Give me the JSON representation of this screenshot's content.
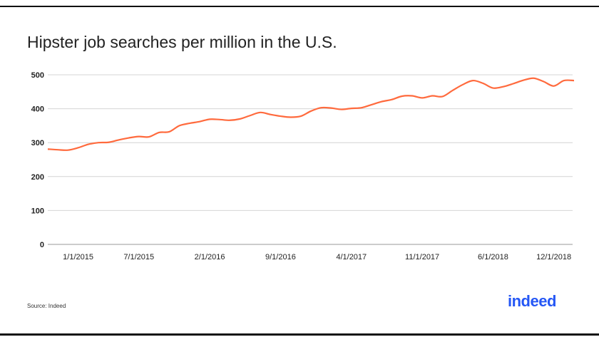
{
  "chart_data": {
    "type": "line",
    "title": "Hipster job searches per million in the U.S.",
    "xlabel": "",
    "ylabel": "",
    "ylim": [
      0,
      500
    ],
    "yticks": [
      0,
      100,
      200,
      300,
      400,
      500
    ],
    "grid": true,
    "start_month": "10/2014",
    "xtick_labels": [
      {
        "label": "1/1/2015",
        "index": 3
      },
      {
        "label": "7/1/2015",
        "index": 9
      },
      {
        "label": "2/1/2016",
        "index": 16
      },
      {
        "label": "9/1/2016",
        "index": 23
      },
      {
        "label": "4/1/2017",
        "index": 30
      },
      {
        "label": "11/1/2017",
        "index": 37
      },
      {
        "label": "6/1/2018",
        "index": 44
      },
      {
        "label": "12/1/2018",
        "index": 50
      }
    ],
    "series": [
      {
        "name": "Hipster job searches per million",
        "color": "#ff6a3d",
        "values": [
          281,
          279,
          278,
          285,
          295,
          300,
          301,
          308,
          314,
          318,
          317,
          330,
          332,
          350,
          357,
          362,
          369,
          368,
          366,
          370,
          380,
          389,
          383,
          378,
          375,
          378,
          393,
          403,
          402,
          398,
          401,
          403,
          412,
          421,
          427,
          437,
          438,
          432,
          438,
          436,
          454,
          471,
          483,
          475,
          461,
          465,
          474,
          484,
          490,
          480,
          467,
          483,
          483
        ]
      }
    ]
  },
  "footer": {
    "source": "Source: Indeed",
    "logo": "indeed"
  }
}
